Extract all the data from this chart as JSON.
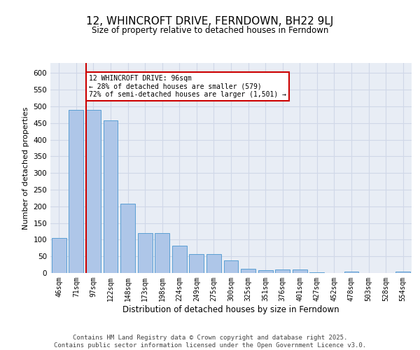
{
  "title": "12, WHINCROFT DRIVE, FERNDOWN, BH22 9LJ",
  "subtitle": "Size of property relative to detached houses in Ferndown",
  "xlabel": "Distribution of detached houses by size in Ferndown",
  "ylabel": "Number of detached properties",
  "categories": [
    "46sqm",
    "71sqm",
    "97sqm",
    "122sqm",
    "148sqm",
    "173sqm",
    "198sqm",
    "224sqm",
    "249sqm",
    "275sqm",
    "300sqm",
    "325sqm",
    "351sqm",
    "376sqm",
    "401sqm",
    "427sqm",
    "452sqm",
    "478sqm",
    "503sqm",
    "528sqm",
    "554sqm"
  ],
  "values": [
    105,
    490,
    490,
    458,
    207,
    120,
    120,
    82,
    57,
    57,
    38,
    13,
    8,
    10,
    10,
    3,
    0,
    5,
    0,
    0,
    5
  ],
  "bar_color": "#aec6e8",
  "bar_edge_color": "#5a9fd4",
  "vline_color": "#cc0000",
  "annotation_text": "12 WHINCROFT DRIVE: 96sqm\n← 28% of detached houses are smaller (579)\n72% of semi-detached houses are larger (1,501) →",
  "annotation_box_color": "#ffffff",
  "annotation_box_edge": "#cc0000",
  "grid_color": "#d0d8e8",
  "background_color": "#e8edf5",
  "footer_text": "Contains HM Land Registry data © Crown copyright and database right 2025.\nContains public sector information licensed under the Open Government Licence v3.0.",
  "ylim": [
    0,
    630
  ],
  "yticks": [
    0,
    50,
    100,
    150,
    200,
    250,
    300,
    350,
    400,
    450,
    500,
    550,
    600
  ]
}
